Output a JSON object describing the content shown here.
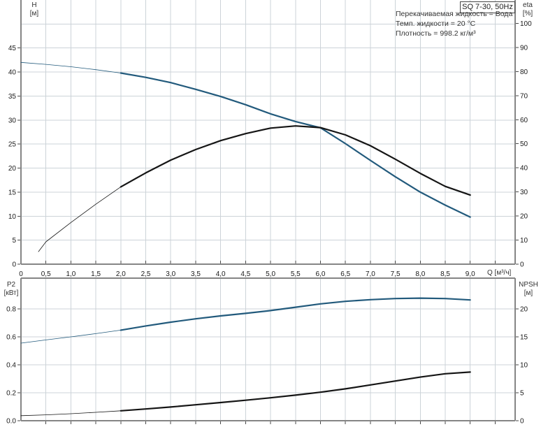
{
  "header": {
    "annotations": [
      "Перекачиваемая жидкость = Вода",
      "Темп. жидкости = 20 °C",
      "Плотность = 998.2 кг/м³"
    ]
  },
  "colors": {
    "curve_blue": "#225a7c",
    "curve_black": "#151515",
    "grid": "#ccd3d8",
    "axis": "#858585",
    "tick": "#4a4a4a",
    "tick_text": "#1a1a1a"
  },
  "chart_data": [
    {
      "type": "line",
      "title": "SQ 7-30, 50Hz",
      "x_label": "Q [м³/ч]",
      "y_left_label": [
        "H",
        "[м]"
      ],
      "y_right_label": [
        "eta",
        "[%]"
      ],
      "x_range": [
        0,
        9.9
      ],
      "y_left_range": [
        0,
        55
      ],
      "y_right_range": [
        0,
        109.7
      ],
      "x_grid_values": [
        0.5,
        1,
        1.5,
        2,
        2.5,
        3,
        3.5,
        4,
        4.5,
        5,
        5.5,
        6,
        6.5,
        7,
        7.5,
        8,
        8.5,
        9,
        9.5
      ],
      "x_tick_values": [
        0,
        0.5,
        1,
        1.5,
        2,
        2.5,
        3,
        3.5,
        4,
        4.5,
        5,
        5.5,
        6,
        6.5,
        7,
        7.5,
        8,
        8.5,
        9
      ],
      "x_tick_labels": [
        "0",
        "0,5",
        "1,0",
        "1,5",
        "2,0",
        "2,5",
        "3,0",
        "3,5",
        "4,0",
        "4,5",
        "5,0",
        "5,5",
        "6,0",
        "6,5",
        "7,0",
        "7,5",
        "8,0",
        "8,5",
        "9,0"
      ],
      "y_left_grid": [
        5,
        10,
        15,
        20,
        25,
        30,
        35,
        40,
        45,
        50
      ],
      "y_left_tick_values": [
        0,
        5,
        10,
        15,
        20,
        25,
        30,
        35,
        40,
        45
      ],
      "y_left_tick_labels": [
        "0",
        "5",
        "10",
        "15",
        "20",
        "25",
        "30",
        "35",
        "40",
        "45"
      ],
      "y_right_tick_values": [
        0,
        10,
        20,
        30,
        40,
        50,
        60,
        70,
        80,
        90,
        100
      ],
      "y_right_tick_labels": [
        "0",
        "10",
        "20",
        "30",
        "40",
        "50",
        "60",
        "70",
        "80",
        "90",
        "100"
      ],
      "grid": true,
      "legend": "none",
      "series": [
        {
          "name": "H pump curve",
          "color": "blue",
          "axis": "left",
          "thin_until": 2,
          "x": [
            0,
            0.5,
            1,
            1.5,
            2,
            2.5,
            3,
            3.5,
            4,
            4.5,
            5,
            5.5,
            6,
            6.5,
            7,
            7.5,
            8,
            8.5,
            9
          ],
          "y": [
            42.0,
            41.6,
            41.1,
            40.5,
            39.8,
            38.9,
            37.8,
            36.4,
            34.9,
            33.2,
            31.3,
            29.7,
            28.4,
            25.1,
            21.6,
            18.2,
            15.0,
            12.3,
            9.8
          ]
        },
        {
          "name": "eta efficiency curve",
          "color": "black",
          "axis": "right",
          "thin_until": 2,
          "x": [
            0.35,
            0.5,
            1,
            1.5,
            2,
            2.5,
            3,
            3.5,
            4,
            4.5,
            5,
            5.5,
            6,
            6.5,
            7,
            7.5,
            8,
            8.5,
            9
          ],
          "y": [
            5.2,
            9.3,
            17.3,
            24.9,
            32.1,
            37.9,
            43.2,
            47.6,
            51.3,
            54.2,
            56.5,
            57.4,
            56.7,
            53.7,
            49.2,
            43.6,
            37.7,
            32.3,
            28.7
          ]
        }
      ]
    },
    {
      "type": "line",
      "title": "",
      "x_label": "",
      "y_left_label": [
        "P2",
        "[кВт]"
      ],
      "y_right_label": [
        "NPSH",
        "[м]"
      ],
      "x_range": [
        0,
        9.9
      ],
      "y_left_range": [
        0,
        1.02
      ],
      "y_right_range": [
        0,
        25.5
      ],
      "x_grid_values": [
        0.5,
        1,
        1.5,
        2,
        2.5,
        3,
        3.5,
        4,
        4.5,
        5,
        5.5,
        6,
        6.5,
        7,
        7.5,
        8,
        8.5,
        9,
        9.5
      ],
      "x_tick_values": [],
      "x_tick_labels": [],
      "y_left_grid": [
        0.2,
        0.4,
        0.6,
        0.8
      ],
      "y_left_tick_values": [
        0,
        0.2,
        0.4,
        0.6,
        0.8
      ],
      "y_left_tick_labels": [
        "0.0",
        "0.2",
        "0.4",
        "0.6",
        "0.8"
      ],
      "y_right_tick_values": [
        0,
        5,
        10,
        15,
        20
      ],
      "y_right_tick_labels": [
        "0",
        "5",
        "10",
        "15",
        "20"
      ],
      "grid": true,
      "legend": "none",
      "series": [
        {
          "name": "P2 power curve",
          "color": "blue",
          "axis": "left",
          "thin_until": 2,
          "x": [
            0,
            0.5,
            1,
            1.5,
            2,
            2.5,
            3,
            3.5,
            4,
            4.5,
            5,
            5.5,
            6,
            6.5,
            7,
            7.5,
            8,
            8.5,
            9
          ],
          "y": [
            0.555,
            0.578,
            0.6,
            0.623,
            0.648,
            0.678,
            0.705,
            0.729,
            0.75,
            0.768,
            0.788,
            0.812,
            0.836,
            0.854,
            0.866,
            0.874,
            0.877,
            0.874,
            0.864
          ]
        },
        {
          "name": "NPSH curve",
          "color": "black",
          "axis": "right",
          "thin_until": 2,
          "x": [
            0,
            0.5,
            1,
            1.5,
            2,
            2.5,
            3,
            3.5,
            4,
            4.5,
            5,
            5.5,
            6,
            6.5,
            7,
            7.5,
            8,
            8.5,
            9
          ],
          "y": [
            0.9,
            1.05,
            1.25,
            1.5,
            1.78,
            2.1,
            2.45,
            2.85,
            3.25,
            3.66,
            4.1,
            4.58,
            5.1,
            5.7,
            6.4,
            7.1,
            7.8,
            8.4,
            8.7
          ]
        }
      ]
    }
  ]
}
